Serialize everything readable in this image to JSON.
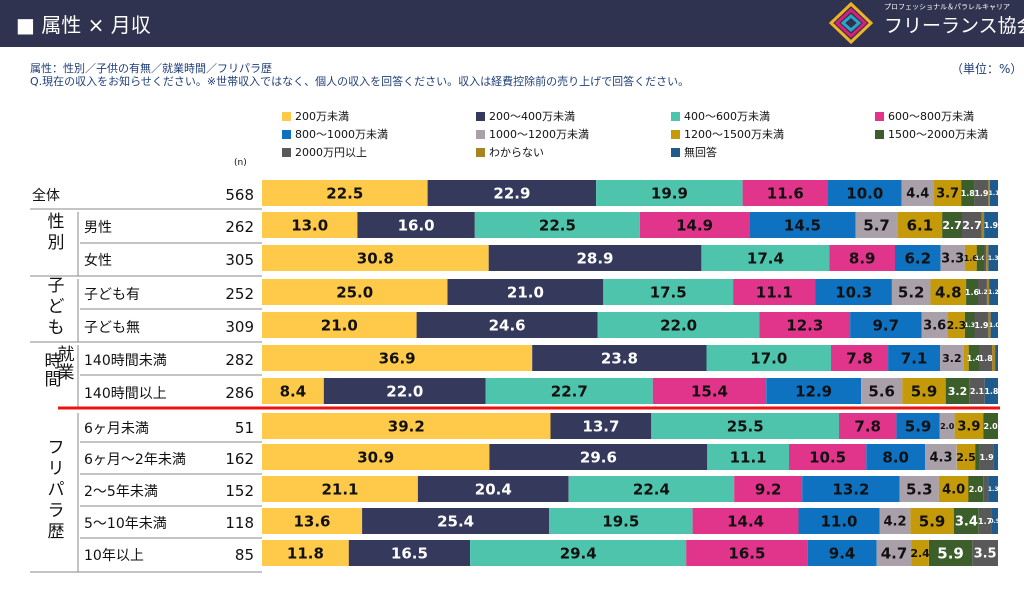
{
  "header": {
    "title": "■ 属性 × 月収",
    "org_sub": "プロフェッショナル＆パラレルキャリア",
    "org_name": "フリーランス協会"
  },
  "subtitle": "属性：性別／子供の有無／就業時間／フリパラ歴",
  "question": "Q.現在の収入をお知らせください。※世帯収入ではなく、個人の収入を回答ください。収入は経費控除前の売り上げで回答ください。",
  "unit": "（単位：%）",
  "n_label": "(n)",
  "colors": [
    "#ffc94a",
    "#353a5c",
    "#4ec4ac",
    "#e1358b",
    "#0e72c0",
    "#aaa0aa",
    "#c49a0b",
    "#3b5e2b",
    "#595959",
    "#a88420",
    "#1e5a8c"
  ],
  "divider_color": "#ee1111",
  "chart_data": {
    "type": "bar",
    "stacked": true,
    "orientation": "horizontal",
    "xlim": [
      0,
      100
    ],
    "series_names": [
      "200万未満",
      "200〜400万未満",
      "400〜600万未満",
      "600〜800万未満",
      "800〜1000万未満",
      "1000〜1200万未満",
      "1200〜1500万未満",
      "1500〜2000万未満",
      "2000万円以上",
      "わからない",
      "無回答"
    ],
    "groups": [
      {
        "label": "",
        "rows": [
          0
        ]
      },
      {
        "label": "性別",
        "rows": [
          1,
          2
        ]
      },
      {
        "label": "子ども",
        "rows": [
          3,
          4
        ]
      },
      {
        "label": "就業時間",
        "rows": [
          5,
          6
        ]
      },
      {
        "label": "フリパラ歴",
        "rows": [
          7,
          8,
          9,
          10,
          11
        ]
      }
    ],
    "rows": [
      {
        "label": "全体",
        "n": 568,
        "values": [
          22.5,
          22.9,
          19.9,
          11.6,
          10.0,
          4.4,
          3.7,
          1.8,
          1.9,
          0.2,
          1.1
        ]
      },
      {
        "label": "男性",
        "n": 262,
        "values": [
          13.0,
          16.0,
          22.5,
          14.9,
          14.5,
          5.7,
          6.1,
          2.7,
          2.7,
          0.3,
          1.9
        ]
      },
      {
        "label": "女性",
        "n": 305,
        "values": [
          30.8,
          28.9,
          17.4,
          8.9,
          6.2,
          3.3,
          1.6,
          1.0,
          0.3,
          0.3,
          1.3
        ]
      },
      {
        "label": "子ども有",
        "n": 252,
        "values": [
          25.0,
          21.0,
          17.5,
          11.1,
          10.3,
          5.2,
          4.8,
          1.6,
          1.2,
          0.3,
          1.2
        ]
      },
      {
        "label": "子ども無",
        "n": 309,
        "values": [
          21.0,
          24.6,
          22.0,
          12.3,
          9.7,
          3.6,
          2.3,
          1.3,
          1.9,
          0.3,
          1.0
        ]
      },
      {
        "label": "140時間未満",
        "n": 282,
        "values": [
          36.9,
          23.8,
          17.0,
          7.8,
          7.1,
          3.2,
          0.7,
          1.4,
          1.8,
          0.4,
          0.4
        ]
      },
      {
        "label": "140時間以上",
        "n": 286,
        "values": [
          8.4,
          22.0,
          22.7,
          15.4,
          12.9,
          5.6,
          5.9,
          3.2,
          2.1,
          0.0,
          1.8
        ]
      },
      {
        "label": "6ヶ月未満",
        "n": 51,
        "values": [
          39.2,
          13.7,
          25.5,
          7.8,
          5.9,
          2.0,
          3.9,
          2.0,
          0.0,
          0.0,
          0.0
        ]
      },
      {
        "label": "6ヶ月〜2年未満",
        "n": 162,
        "values": [
          30.9,
          29.6,
          11.1,
          10.5,
          8.0,
          4.3,
          2.5,
          0.6,
          1.9,
          0.0,
          0.6
        ]
      },
      {
        "label": "2〜5年未満",
        "n": 152,
        "values": [
          21.1,
          20.4,
          22.4,
          9.2,
          13.2,
          5.3,
          4.0,
          2.0,
          0.7,
          0.0,
          1.3
        ]
      },
      {
        "label": "5〜10年未満",
        "n": 118,
        "values": [
          13.6,
          25.4,
          19.5,
          14.4,
          11.0,
          4.2,
          5.9,
          3.4,
          1.7,
          0.0,
          0.9
        ]
      },
      {
        "label": "10年以上",
        "n": 85,
        "values": [
          11.8,
          16.5,
          29.4,
          16.5,
          9.4,
          4.7,
          2.4,
          5.9,
          3.5,
          0.0,
          0.0
        ]
      }
    ]
  }
}
